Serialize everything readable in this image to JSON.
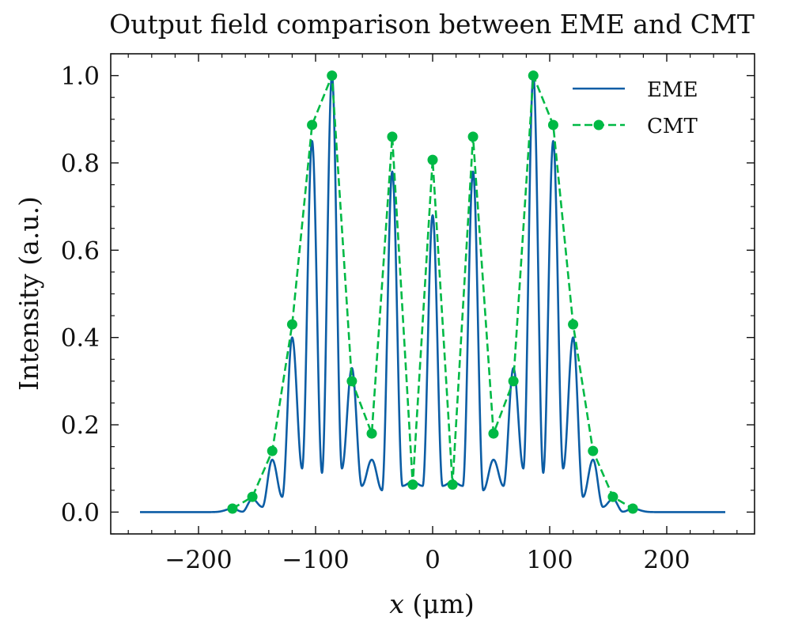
{
  "chart_data": {
    "type": "line",
    "title": "Output field comparison between EME and CMT",
    "xlabel_var": "x",
    "xlabel_unit": "(μm)",
    "ylabel": "Intensity (a.u.)",
    "xlim": [
      -275,
      275
    ],
    "ylim": [
      -0.05,
      1.05
    ],
    "xticks": [
      -200,
      -100,
      0,
      100,
      200
    ],
    "xtick_labels": [
      "−200",
      "−100",
      "0",
      "100",
      "200"
    ],
    "yticks": [
      0.0,
      0.2,
      0.4,
      0.6,
      0.8,
      1.0
    ],
    "ytick_labels": [
      "0.0",
      "0.2",
      "0.4",
      "0.6",
      "0.8",
      "1.0"
    ],
    "grid": false,
    "legend_position": "top-right",
    "series": [
      {
        "name": "EME",
        "style": "solid line",
        "color": "#0c5da5",
        "x_range": [
          -250,
          250
        ],
        "peaks": [
          {
            "x": -171,
            "y": 0.008
          },
          {
            "x": -154,
            "y": 0.03
          },
          {
            "x": -137,
            "y": 0.12
          },
          {
            "x": -120,
            "y": 0.4
          },
          {
            "x": -103,
            "y": 0.85
          },
          {
            "x": -86,
            "y": 1.0
          },
          {
            "x": -69,
            "y": 0.33
          },
          {
            "x": -52,
            "y": 0.12
          },
          {
            "x": -34.5,
            "y": 0.78
          },
          {
            "x": -17,
            "y": 0.07
          },
          {
            "x": 0,
            "y": 0.68
          },
          {
            "x": 17,
            "y": 0.07
          },
          {
            "x": 34.5,
            "y": 0.78
          },
          {
            "x": 52,
            "y": 0.12
          },
          {
            "x": 69,
            "y": 0.33
          },
          {
            "x": 86,
            "y": 1.0
          },
          {
            "x": 103,
            "y": 0.85
          },
          {
            "x": 120,
            "y": 0.4
          },
          {
            "x": 137,
            "y": 0.12
          },
          {
            "x": 154,
            "y": 0.03
          },
          {
            "x": 171,
            "y": 0.008
          }
        ],
        "valley_floors": [
          0.001,
          0.012,
          0.035,
          0.1,
          0.09,
          0.1,
          0.06,
          0.05,
          0.06,
          0.06,
          0.06,
          0.06,
          0.05,
          0.06,
          0.1,
          0.09,
          0.1,
          0.035,
          0.012,
          0.001
        ]
      },
      {
        "name": "CMT",
        "style": "dashed line with circle markers",
        "color": "#00b945",
        "x": [
          -171,
          -154,
          -137,
          -120,
          -103,
          -86,
          -69,
          -52,
          -34.5,
          -17,
          0,
          17,
          34.5,
          52,
          69,
          86,
          103,
          120,
          137,
          154,
          171
        ],
        "y": [
          0.008,
          0.035,
          0.14,
          0.43,
          0.887,
          1.0,
          0.3,
          0.18,
          0.86,
          0.063,
          0.807,
          0.063,
          0.86,
          0.18,
          0.3,
          1.0,
          0.887,
          0.43,
          0.14,
          0.035,
          0.008
        ]
      }
    ]
  }
}
